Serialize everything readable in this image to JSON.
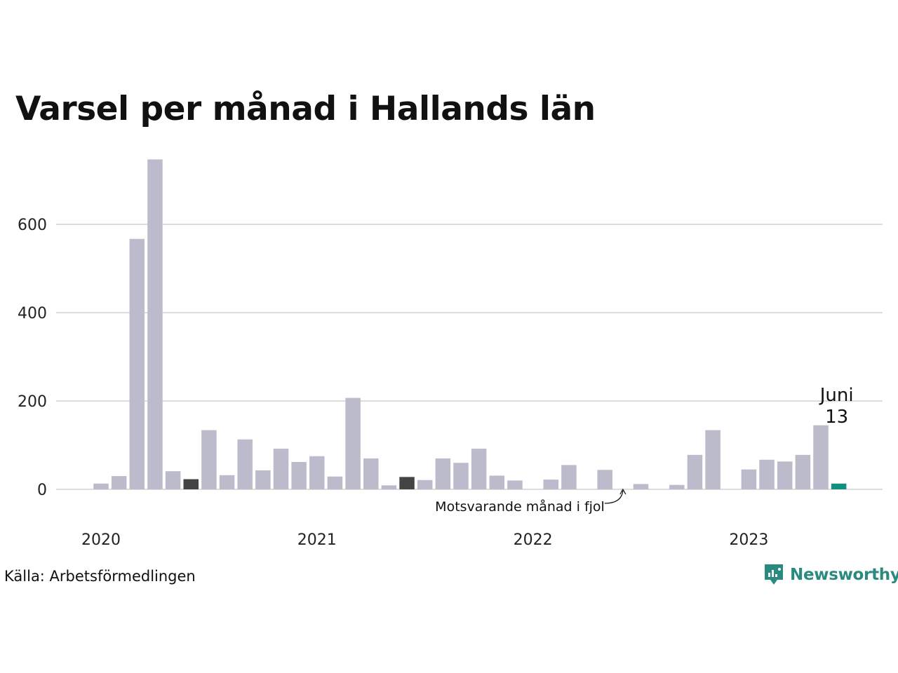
{
  "colors": {
    "bar": "#bcbbcb",
    "bar_last_year": "#444444",
    "bar_current": "#12907f",
    "grid": "#dddddd",
    "brand": "#2a8a80"
  },
  "chart_data": {
    "type": "bar",
    "title": "Varsel per månad i Hallands län",
    "xlabel": "",
    "ylabel": "",
    "ylim": [
      0,
      760
    ],
    "yticks": [
      0,
      200,
      400,
      600
    ],
    "xticks": [
      "2020",
      "2021",
      "2022",
      "2023"
    ],
    "grid": true,
    "categories": [
      "2020-01",
      "2020-02",
      "2020-03",
      "2020-04",
      "2020-05",
      "2020-06",
      "2020-07",
      "2020-08",
      "2020-09",
      "2020-10",
      "2020-11",
      "2020-12",
      "2021-01",
      "2021-02",
      "2021-03",
      "2021-04",
      "2021-05",
      "2021-06",
      "2021-07",
      "2021-08",
      "2021-09",
      "2021-10",
      "2021-11",
      "2021-12",
      "2022-01",
      "2022-02",
      "2022-03",
      "2022-04",
      "2022-05",
      "2022-06",
      "2022-07",
      "2022-08",
      "2022-09",
      "2022-10",
      "2022-11",
      "2022-12",
      "2023-01",
      "2023-02",
      "2023-03",
      "2023-04",
      "2023-05",
      "2023-06"
    ],
    "values": [
      13,
      30,
      567,
      747,
      41,
      23,
      134,
      32,
      113,
      43,
      92,
      62,
      75,
      29,
      207,
      70,
      9,
      28,
      21,
      70,
      60,
      92,
      31,
      20,
      0,
      22,
      55,
      0,
      44,
      0,
      12,
      0,
      10,
      78,
      134,
      0,
      45,
      67,
      63,
      78,
      145,
      13
    ],
    "highlight_last_year": [
      "2020-06",
      "2021-06"
    ],
    "highlight_current": "2023-06",
    "current_label": {
      "month": "Juni",
      "value": "13"
    },
    "annotation": "Motsvarande månad i fjol"
  },
  "source": "Källa: Arbetsförmedlingen",
  "brand": {
    "name": "Newsworthy",
    "icon": "newsworthy-logo-icon"
  }
}
